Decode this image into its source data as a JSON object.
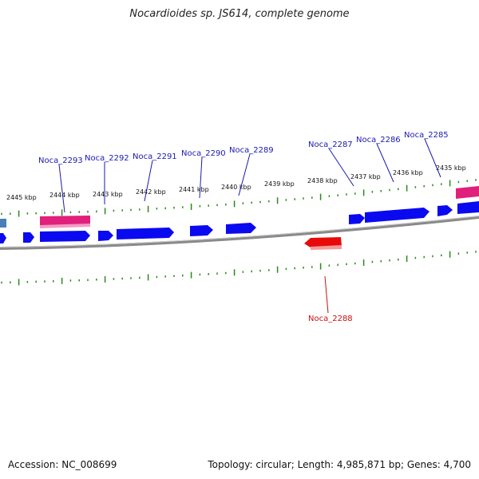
{
  "title": "Nocardioides sp. JS614, complete genome",
  "footer": {
    "accession": "Accession: NC_008699",
    "summary": "Topology: circular; Length: 4,985,871 bp; Genes: 4,700"
  },
  "colors": {
    "forward_gene": "#0a0af0",
    "reverse_gene": "#e80a0a",
    "rna_gene": "#e0207a",
    "other_gene": "#4a7fb8",
    "tick": "#2a8a1a",
    "backbone": "#808080",
    "label_forward": "#1a1ab0",
    "label_reverse": "#cc1010"
  },
  "scale_labels": [
    "2445 kbp",
    "2444 kbp",
    "2443 kbp",
    "2442 kbp",
    "2441 kbp",
    "2440 kbp",
    "2439 kbp",
    "2438 kbp",
    "2437 kbp",
    "2436 kbp",
    "2435 kbp"
  ],
  "forward_gene_labels": [
    "Noca_2293",
    "Noca_2292",
    "Noca_2291",
    "Noca_2290",
    "Noca_2289",
    "Noca_2287",
    "Noca_2286",
    "Noca_2285"
  ],
  "reverse_gene_labels": [
    "Noca_2288"
  ]
}
